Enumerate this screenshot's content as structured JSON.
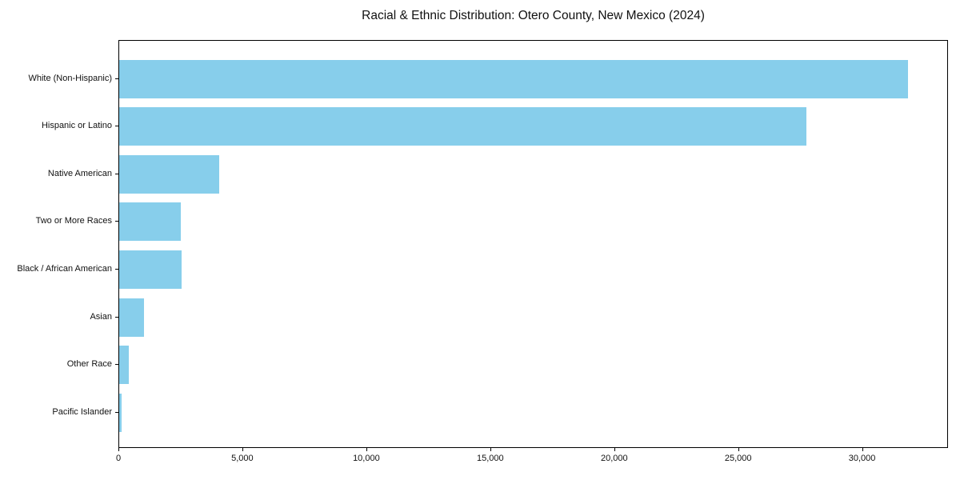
{
  "chart_data": {
    "type": "bar",
    "orientation": "horizontal",
    "title": "Racial & Ethnic Distribution: Otero County, New Mexico (2024)",
    "categories": [
      "White (Non-Hispanic)",
      "Hispanic or Latino",
      "Native American",
      "Two or More Races",
      "Black / African American",
      "Asian",
      "Other Race",
      "Pacific Islander"
    ],
    "values": [
      31830,
      27715,
      4025,
      2470,
      2525,
      1000,
      400,
      90
    ],
    "bar_color": "#87CEEB",
    "axis_color": "#000000",
    "background_color": "#ffffff",
    "xlabel": "",
    "ylabel": "",
    "xlim": [
      0,
      33400
    ],
    "x_ticks": [
      {
        "value": 0,
        "label": "0"
      },
      {
        "value": 5000,
        "label": "5,000"
      },
      {
        "value": 10000,
        "label": "10,000"
      },
      {
        "value": 15000,
        "label": "15,000"
      },
      {
        "value": 20000,
        "label": "20,000"
      },
      {
        "value": 25000,
        "label": "25,000"
      },
      {
        "value": 30000,
        "label": "30,000"
      }
    ],
    "grid": false,
    "legend": null
  }
}
